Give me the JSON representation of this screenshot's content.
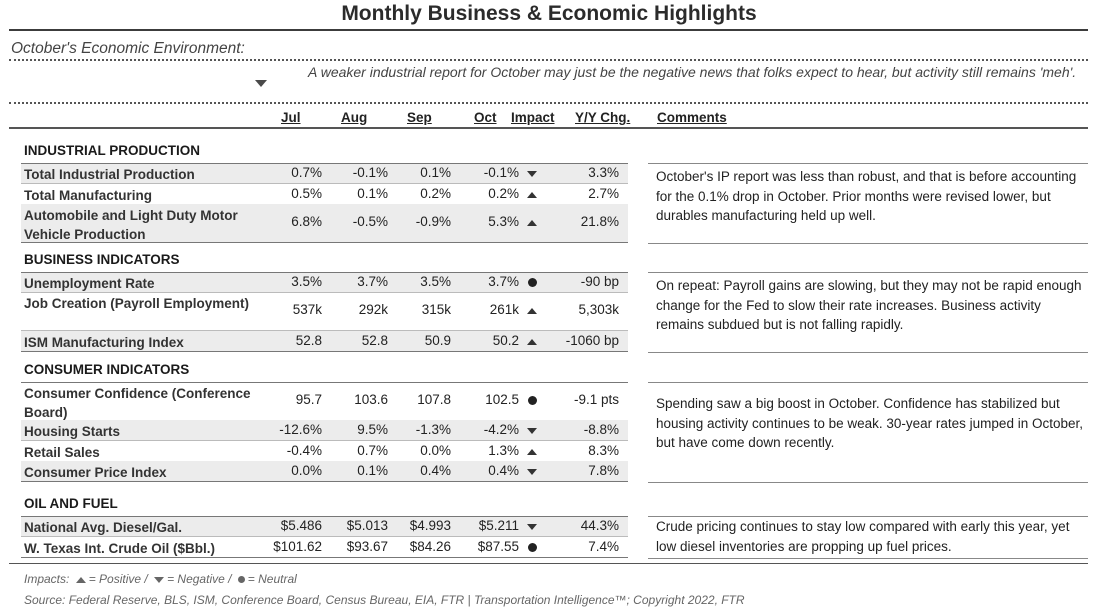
{
  "title": "Monthly Business & Economic Highlights",
  "environment": {
    "label": "October's Economic Environment:",
    "arrow_icon": "down",
    "text": "A weaker industrial report for October may just be the negative news that folks expect to hear, but activity still remains 'meh'."
  },
  "headers": {
    "jul": "Jul",
    "aug": "Aug",
    "sep": "Sep",
    "oct": "Oct",
    "impact": "Impact",
    "yy": "Y/Y Chg.",
    "comments": "Comments"
  },
  "sections": [
    {
      "title": "INDUSTRIAL PRODUCTION",
      "comment": "October's IP report was less than robust, and that is before accounting for the 0.1% drop in October. Prior months were revised lower, but durables manufacturing held up well.",
      "rows": [
        {
          "name": "Total Industrial Production",
          "jul": "0.7%",
          "aug": "-0.1%",
          "sep": "0.1%",
          "oct": "-0.1%",
          "impact": "down",
          "yy": "3.3%"
        },
        {
          "name": "Total Manufacturing",
          "jul": "0.5%",
          "aug": "0.1%",
          "sep": "0.2%",
          "oct": "0.2%",
          "impact": "up",
          "yy": "2.7%"
        },
        {
          "name": "Automobile and Light Duty Motor Vehicle Production",
          "jul": "6.8%",
          "aug": "-0.5%",
          "sep": "-0.9%",
          "oct": "5.3%",
          "impact": "up",
          "yy": "21.8%"
        }
      ]
    },
    {
      "title": "BUSINESS INDICATORS",
      "comment": "On repeat: Payroll gains are slowing, but they may not be rapid enough change for the Fed to slow their rate increases. Business activity remains subdued but is not falling rapidly.",
      "rows": [
        {
          "name": "Unemployment Rate",
          "jul": "3.5%",
          "aug": "3.7%",
          "sep": "3.5%",
          "oct": "3.7%",
          "impact": "neutral",
          "yy": "-90 bp"
        },
        {
          "name": "Job Creation (Payroll Employment)",
          "jul": "537k",
          "aug": "292k",
          "sep": "315k",
          "oct": "261k",
          "impact": "up",
          "yy": "5,303k"
        },
        {
          "name": "ISM Manufacturing Index",
          "jul": "52.8",
          "aug": "52.8",
          "sep": "50.9",
          "oct": "50.2",
          "impact": "up",
          "yy": "-1060 bp"
        }
      ]
    },
    {
      "title": "CONSUMER INDICATORS",
      "comment": "Spending saw a big boost in October. Confidence has stabilized but housing activity continues to be weak. 30-year rates jumped in October, but have come down recently.",
      "rows": [
        {
          "name": "Consumer Confidence (Conference Board)",
          "jul": "95.7",
          "aug": "103.6",
          "sep": "107.8",
          "oct": "102.5",
          "impact": "neutral",
          "yy": "-9.1 pts"
        },
        {
          "name": "Housing Starts",
          "jul": "-12.6%",
          "aug": "9.5%",
          "sep": "-1.3%",
          "oct": "-4.2%",
          "impact": "down",
          "yy": "-8.8%"
        },
        {
          "name": "Retail Sales",
          "jul": "-0.4%",
          "aug": "0.7%",
          "sep": "0.0%",
          "oct": "1.3%",
          "impact": "up",
          "yy": "8.3%"
        },
        {
          "name": "Consumer Price Index",
          "jul": "0.0%",
          "aug": "0.1%",
          "sep": "0.4%",
          "oct": "0.4%",
          "impact": "down",
          "yy": "7.8%"
        }
      ]
    },
    {
      "title": "OIL AND FUEL",
      "comment": "Crude pricing continues to stay low compared with early this year, yet low diesel inventories are propping up fuel prices.",
      "rows": [
        {
          "name": "National Avg. Diesel/Gal.",
          "jul": "$5.486",
          "aug": "$5.013",
          "sep": "$4.993",
          "oct": "$5.211",
          "impact": "down",
          "yy": "44.3%"
        },
        {
          "name": "W. Texas Int. Crude Oil ($Bbl.)",
          "jul": "$101.62",
          "aug": "$93.67",
          "sep": "$84.26",
          "oct": "$87.55",
          "impact": "neutral",
          "yy": "7.4%"
        }
      ]
    }
  ],
  "footer": {
    "impacts_label": "Impacts:",
    "positive": "= Positive /",
    "negative": "= Negative /",
    "neutral": "= Neutral",
    "source": "Source: Federal Reserve, BLS, ISM, Conference Board, Census Bureau, EIA, FTR | Transportation Intelligence™; Copyright 2022, FTR"
  }
}
